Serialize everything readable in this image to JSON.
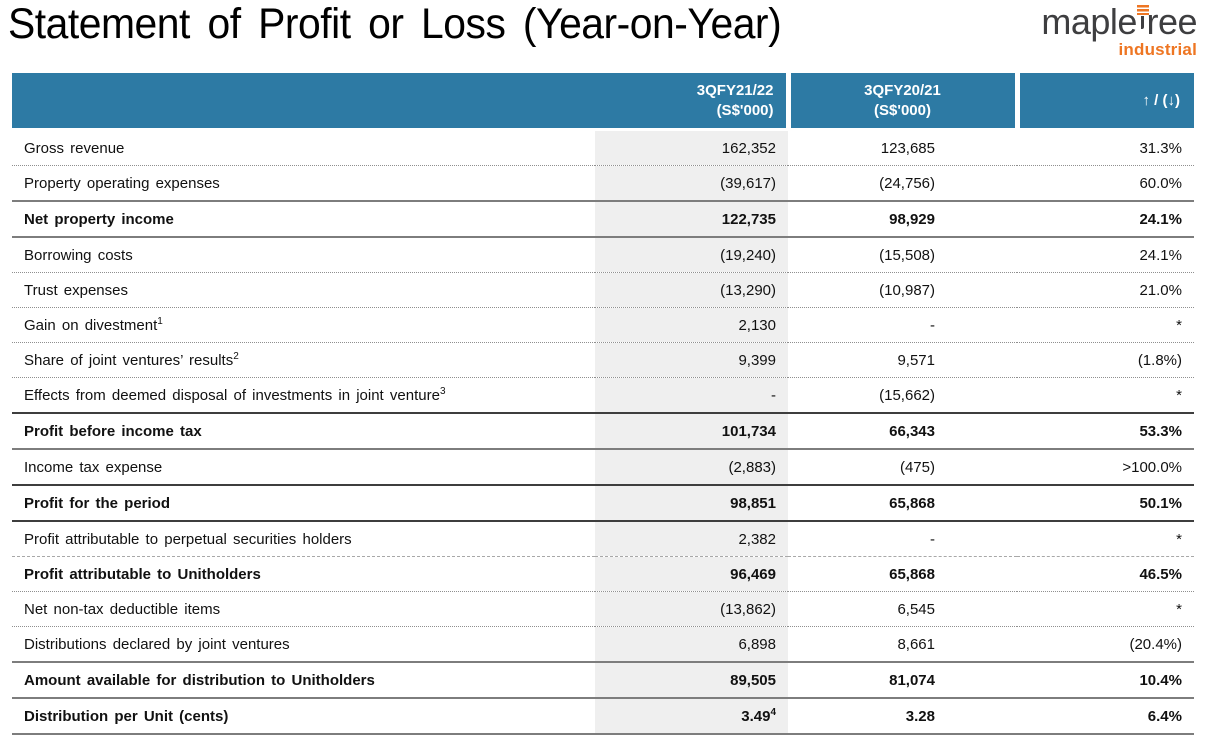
{
  "page": {
    "title": "Statement of Profit or Loss (Year-on-Year)"
  },
  "logo": {
    "brand": "mapletree",
    "brand_prefix": "maple",
    "brand_t": "t",
    "brand_suffix": "ree",
    "division": "industrial",
    "brand_color": "#3E3E40",
    "accent_color": "#EE7623"
  },
  "colors": {
    "header_bg": "#2D7AA4",
    "current_column_shade": "#EFEFEF"
  },
  "table": {
    "header": {
      "col_current_line1": "3QFY21/22",
      "col_current_line2": "(S$'000)",
      "col_prior_line1": "3QFY20/21",
      "col_prior_line2": "(S$'000)",
      "col_change": "↑ / (↓)"
    },
    "rows": [
      {
        "label": "Gross revenue",
        "sup": "",
        "v1": "162,352",
        "v1_sup": "",
        "v2": "123,685",
        "pct": "31.3%",
        "bold": false,
        "divider": "dotted"
      },
      {
        "label": "Property operating expenses",
        "sup": "",
        "v1": "(39,617)",
        "v1_sup": "",
        "v2": "(24,756)",
        "pct": "60.0%",
        "bold": false,
        "divider": "solid"
      },
      {
        "label": "Net property income",
        "sup": "",
        "v1": "122,735",
        "v1_sup": "",
        "v2": "98,929",
        "pct": "24.1%",
        "bold": true,
        "divider": "solid"
      },
      {
        "label": "Borrowing costs",
        "sup": "",
        "v1": "(19,240)",
        "v1_sup": "",
        "v2": "(15,508)",
        "pct": "24.1%",
        "bold": false,
        "divider": "dotted"
      },
      {
        "label": "Trust expenses",
        "sup": "",
        "v1": "(13,290)",
        "v1_sup": "",
        "v2": "(10,987)",
        "pct": "21.0%",
        "bold": false,
        "divider": "dotted"
      },
      {
        "label": "Gain on divestment",
        "sup": "1",
        "v1": "2,130",
        "v1_sup": "",
        "v2": "-",
        "pct": "*",
        "bold": false,
        "divider": "dotted"
      },
      {
        "label": "Share of joint ventures’ results",
        "sup": "2",
        "v1": "9,399",
        "v1_sup": "",
        "v2": "9,571",
        "pct": "(1.8%)",
        "bold": false,
        "divider": "dotted"
      },
      {
        "label": "Effects from deemed disposal of investments in joint venture",
        "sup": "3",
        "v1": "-",
        "v1_sup": "",
        "v2": "(15,662)",
        "pct": "*",
        "bold": false,
        "divider": "solid-dark"
      },
      {
        "label": "Profit before income tax",
        "sup": "",
        "v1": "101,734",
        "v1_sup": "",
        "v2": "66,343",
        "pct": "53.3%",
        "bold": true,
        "divider": "solid"
      },
      {
        "label": "Income tax expense",
        "sup": "",
        "v1": "(2,883)",
        "v1_sup": "",
        "v2": "(475)",
        "pct": ">100.0%",
        "bold": false,
        "divider": "solid-dark"
      },
      {
        "label": "Profit for the period",
        "sup": "",
        "v1": "98,851",
        "v1_sup": "",
        "v2": "65,868",
        "pct": "50.1%",
        "bold": true,
        "divider": "solid-dark"
      },
      {
        "label": "Profit attributable to perpetual securities holders",
        "sup": "",
        "v1": "2,382",
        "v1_sup": "",
        "v2": "-",
        "pct": "*",
        "bold": false,
        "divider": "dashed"
      },
      {
        "label": "Profit attributable to Unitholders",
        "sup": "",
        "v1": "96,469",
        "v1_sup": "",
        "v2": "65,868",
        "pct": "46.5%",
        "bold": true,
        "divider": "dotted"
      },
      {
        "label": "Net non-tax deductible items",
        "sup": "",
        "v1": "(13,862)",
        "v1_sup": "",
        "v2": "6,545",
        "pct": "*",
        "bold": false,
        "divider": "dotted"
      },
      {
        "label": "Distributions declared by joint ventures",
        "sup": "",
        "v1": "6,898",
        "v1_sup": "",
        "v2": "8,661",
        "pct": "(20.4%)",
        "bold": false,
        "divider": "solid"
      },
      {
        "label": "Amount available for distribution to Unitholders",
        "sup": "",
        "v1": "89,505",
        "v1_sup": "",
        "v2": "81,074",
        "pct": "10.4%",
        "bold": true,
        "divider": "solid"
      },
      {
        "label": "Distribution per Unit (cents)",
        "sup": "",
        "v1": "3.49",
        "v1_sup": "4",
        "v2": "3.28",
        "pct": "6.4%",
        "bold": true,
        "divider": "solid"
      }
    ]
  }
}
